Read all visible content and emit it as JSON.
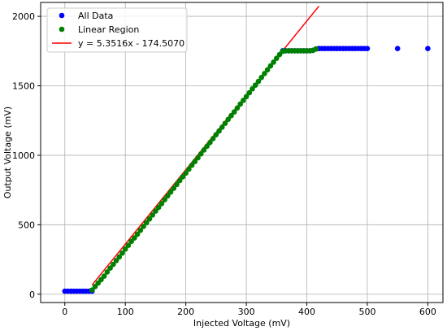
{
  "chart_data": {
    "type": "scatter",
    "xlabel": "Injected Voltage (mV)",
    "ylabel": "Output Voltage (mV)",
    "xlim": [
      -40,
      625
    ],
    "ylim": [
      -60,
      2100
    ],
    "xticks": [
      0,
      100,
      200,
      300,
      400,
      500,
      600
    ],
    "yticks": [
      0,
      500,
      1000,
      1500,
      2000
    ],
    "grid": true,
    "legend_position": "top-left",
    "series": [
      {
        "name": "All Data",
        "kind": "scatter",
        "color": "#0000ff",
        "points": [
          [
            0,
            22
          ],
          [
            5,
            22
          ],
          [
            10,
            22
          ],
          [
            15,
            22
          ],
          [
            20,
            22
          ],
          [
            25,
            22
          ],
          [
            30,
            22
          ],
          [
            35,
            22
          ],
          [
            40,
            22
          ],
          [
            45,
            22
          ],
          [
            360,
            1752
          ],
          [
            365,
            1752
          ],
          [
            370,
            1752
          ],
          [
            375,
            1752
          ],
          [
            380,
            1752
          ],
          [
            385,
            1752
          ],
          [
            390,
            1752
          ],
          [
            395,
            1752
          ],
          [
            400,
            1752
          ],
          [
            405,
            1752
          ],
          [
            410,
            1755
          ],
          [
            415,
            1765
          ],
          [
            420,
            1768
          ],
          [
            425,
            1768
          ],
          [
            430,
            1768
          ],
          [
            435,
            1768
          ],
          [
            440,
            1768
          ],
          [
            445,
            1768
          ],
          [
            450,
            1768
          ],
          [
            455,
            1768
          ],
          [
            460,
            1768
          ],
          [
            465,
            1768
          ],
          [
            470,
            1768
          ],
          [
            475,
            1768
          ],
          [
            480,
            1768
          ],
          [
            485,
            1768
          ],
          [
            490,
            1768
          ],
          [
            495,
            1768
          ],
          [
            500,
            1768
          ],
          [
            550,
            1768
          ],
          [
            600,
            1768
          ]
        ]
      },
      {
        "name": "Linear Region",
        "kind": "scatter",
        "color": "#008000",
        "x_range": [
          45,
          415
        ],
        "x_step": 5,
        "points": [
          [
            45,
            30
          ],
          [
            50,
            55
          ],
          [
            55,
            80
          ],
          [
            60,
            105
          ],
          [
            65,
            130
          ],
          [
            70,
            160
          ],
          [
            75,
            188
          ],
          [
            80,
            215
          ],
          [
            85,
            242
          ],
          [
            90,
            268
          ],
          [
            95,
            296
          ],
          [
            100,
            325
          ],
          [
            105,
            352
          ],
          [
            110,
            380
          ],
          [
            115,
            405
          ],
          [
            120,
            432
          ],
          [
            125,
            460
          ],
          [
            130,
            488
          ],
          [
            135,
            515
          ],
          [
            140,
            542
          ],
          [
            145,
            570
          ],
          [
            150,
            598
          ],
          [
            155,
            625
          ],
          [
            160,
            652
          ],
          [
            165,
            680
          ],
          [
            170,
            708
          ],
          [
            175,
            735
          ],
          [
            180,
            762
          ],
          [
            185,
            790
          ],
          [
            190,
            818
          ],
          [
            195,
            845
          ],
          [
            200,
            872
          ],
          [
            205,
            900
          ],
          [
            210,
            928
          ],
          [
            215,
            955
          ],
          [
            220,
            982
          ],
          [
            225,
            1010
          ],
          [
            230,
            1038
          ],
          [
            235,
            1065
          ],
          [
            240,
            1092
          ],
          [
            245,
            1120
          ],
          [
            250,
            1148
          ],
          [
            255,
            1175
          ],
          [
            260,
            1202
          ],
          [
            265,
            1230
          ],
          [
            270,
            1258
          ],
          [
            275,
            1285
          ],
          [
            280,
            1312
          ],
          [
            285,
            1340
          ],
          [
            290,
            1368
          ],
          [
            295,
            1395
          ],
          [
            300,
            1422
          ],
          [
            305,
            1450
          ],
          [
            310,
            1478
          ],
          [
            315,
            1505
          ],
          [
            320,
            1532
          ],
          [
            325,
            1560
          ],
          [
            330,
            1588
          ],
          [
            335,
            1615
          ],
          [
            340,
            1643
          ],
          [
            345,
            1670
          ],
          [
            350,
            1698
          ],
          [
            355,
            1725
          ],
          [
            360,
            1748
          ],
          [
            365,
            1752
          ],
          [
            370,
            1752
          ],
          [
            375,
            1752
          ],
          [
            380,
            1752
          ],
          [
            385,
            1752
          ],
          [
            390,
            1752
          ],
          [
            395,
            1752
          ],
          [
            400,
            1752
          ],
          [
            405,
            1752
          ],
          [
            410,
            1755
          ],
          [
            415,
            1765
          ]
        ]
      },
      {
        "name": "y = 5.3516x - 174.5070",
        "kind": "line",
        "color": "#ff0000",
        "slope": 5.3516,
        "intercept": -174.507,
        "x_range": [
          45,
          420
        ]
      }
    ]
  }
}
